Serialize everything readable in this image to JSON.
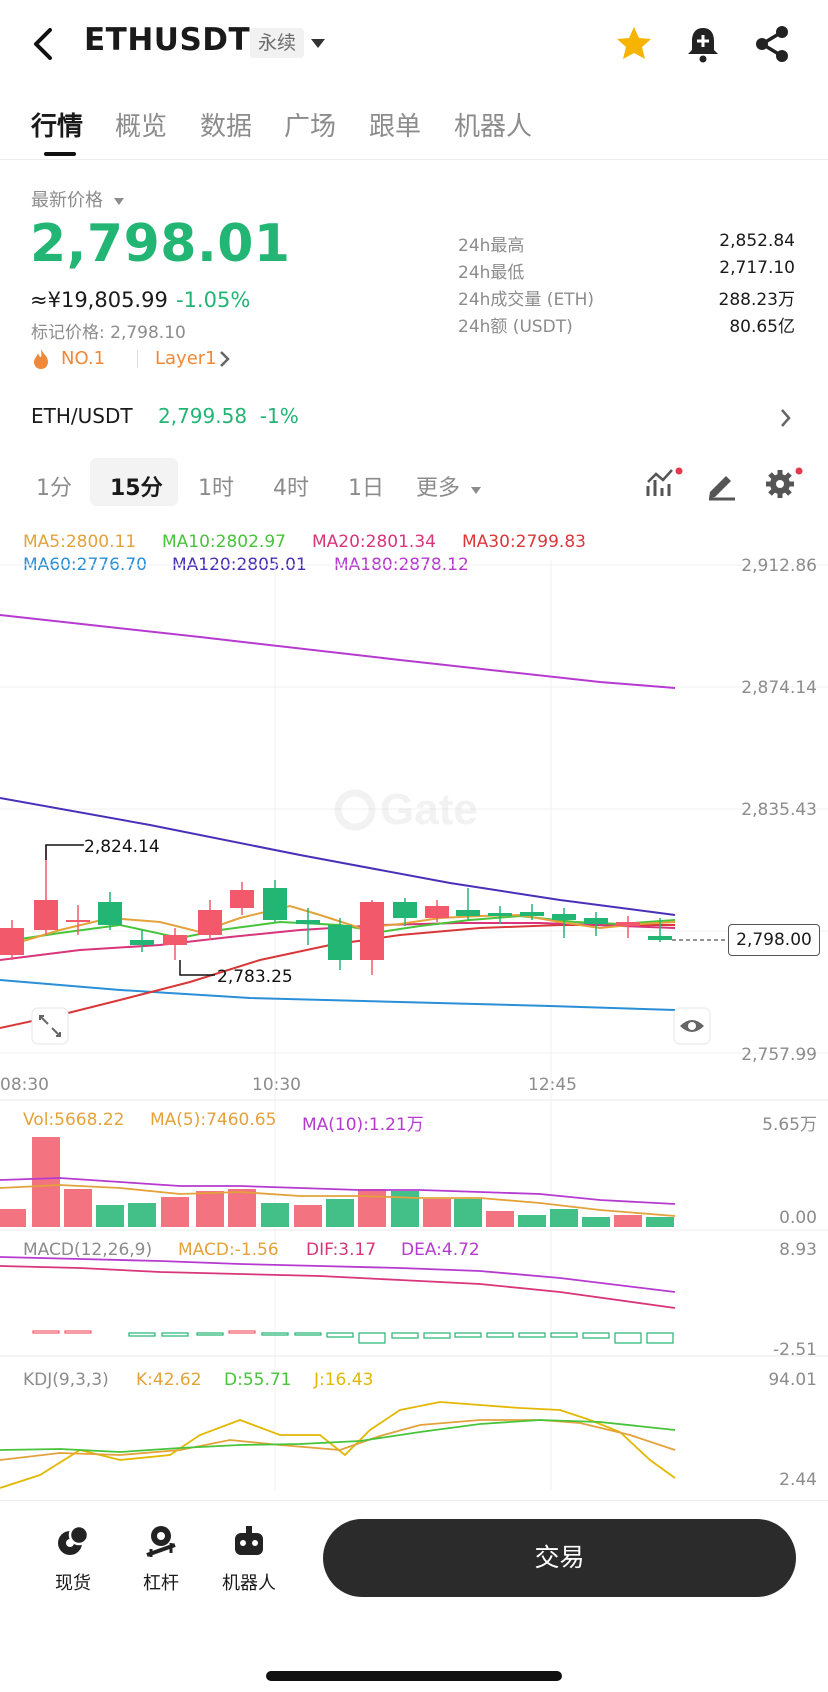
{
  "header": {
    "symbol": "ETHUSDT",
    "contract_badge": "永续",
    "icons": [
      "back-icon",
      "star-icon",
      "bell-plus-icon",
      "share-icon"
    ]
  },
  "tabs": [
    {
      "label": "行情",
      "active": true
    },
    {
      "label": "概览"
    },
    {
      "label": "数据"
    },
    {
      "label": "广场"
    },
    {
      "label": "跟单"
    },
    {
      "label": "机器人"
    }
  ],
  "price": {
    "latest_label": "最新价格",
    "last": "2,798.01",
    "cny": "≈¥19,805.99",
    "change": "-1.05%",
    "mark": "标记价格: 2,798.10",
    "rank": "NO.1",
    "tag": "Layer1"
  },
  "stats": [
    {
      "label": "24h最高",
      "value": "2,852.84"
    },
    {
      "label": "24h最低",
      "value": "2,717.10"
    },
    {
      "label": "24h成交量 (ETH)",
      "value": "288.23万"
    },
    {
      "label": "24h额 (USDT)",
      "value": "80.65亿"
    }
  ],
  "spot_pair": {
    "name": "ETH/USDT",
    "price": "2,799.58",
    "change": "-1%"
  },
  "intervals": [
    {
      "label": "1分"
    },
    {
      "label": "15分",
      "active": true
    },
    {
      "label": "1时"
    },
    {
      "label": "4时"
    },
    {
      "label": "1日"
    },
    {
      "label": "更多"
    }
  ],
  "ma_legend": [
    {
      "text": "MA5:2800.11",
      "color": "#e3a23a"
    },
    {
      "text": "MA10:2802.97",
      "color": "#47c43a"
    },
    {
      "text": "MA20:2801.34",
      "color": "#d8357a"
    },
    {
      "text": "MA30:2799.83",
      "color": "#d9383a"
    },
    {
      "text": "MA60:2776.70",
      "color": "#2a8fd6"
    },
    {
      "text": "MA120:2805.01",
      "color": "#4a2fb8"
    },
    {
      "text": "MA180:2878.12",
      "color": "#b63ad0"
    }
  ],
  "price_axis": [
    "2,912.86",
    "2,874.14",
    "2,835.43",
    "2,798.00",
    "2,757.99"
  ],
  "time_axis": [
    "08:30",
    "10:30",
    "12:45"
  ],
  "annotations": {
    "high": "2,824.14",
    "low": "2,783.25"
  },
  "current_price_tag": "2,798.00",
  "watermark": "Gate",
  "volume": {
    "legend": [
      {
        "text": "Vol:5668.22",
        "color": "#e3a23a"
      },
      {
        "text": "MA(5):7460.65",
        "color": "#e3a23a"
      },
      {
        "text": "MA(10):1.21万",
        "color": "#b63ad0"
      }
    ],
    "axis": [
      "5.65万",
      "0.00"
    ]
  },
  "macd": {
    "legend": [
      {
        "text": "MACD(12,26,9)",
        "color": "#8c8c8c"
      },
      {
        "text": "MACD:-1.56",
        "color": "#e3a23a"
      },
      {
        "text": "DIF:3.17",
        "color": "#d8357a"
      },
      {
        "text": "DEA:4.72",
        "color": "#b63ad0"
      }
    ],
    "axis": [
      "8.93",
      "-2.51"
    ]
  },
  "kdj": {
    "legend": [
      {
        "text": "KDJ(9,3,3)",
        "color": "#8c8c8c"
      },
      {
        "text": "K:42.62",
        "color": "#e3a23a"
      },
      {
        "text": "D:55.71",
        "color": "#47c43a"
      },
      {
        "text": "J:16.43",
        "color": "#e3b800"
      }
    ],
    "axis": [
      "94.01",
      "2.44"
    ]
  },
  "colors": {
    "up": "#22b573",
    "down": "#f25a6b",
    "text": "#1a1a1a",
    "muted": "#8c8c8c"
  },
  "bottom_nav": [
    {
      "label": "现货",
      "icon": "spot-icon"
    },
    {
      "label": "杠杆",
      "icon": "margin-icon"
    },
    {
      "label": "机器人",
      "icon": "robot-icon"
    }
  ],
  "trade_button": "交易"
}
